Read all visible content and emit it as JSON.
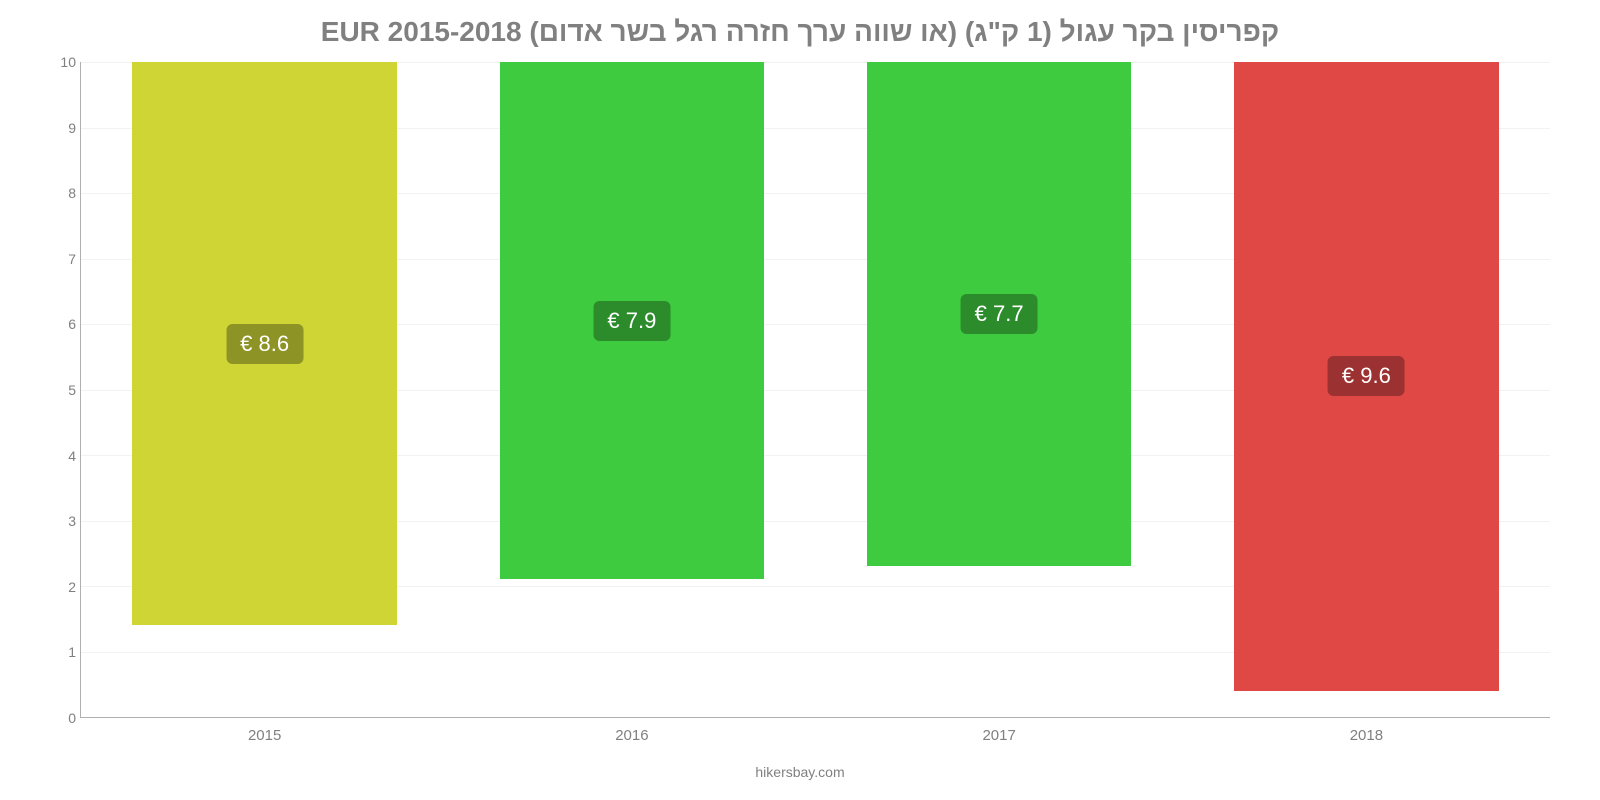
{
  "chart": {
    "type": "bar",
    "title": "קפריסין בקר עגול (1 ק\"ג) (או שווה ערך חזרה רגל בשר אדום) EUR 2015-2018",
    "title_color": "#808080",
    "title_fontsize": 28,
    "background_color": "#ffffff",
    "grid_color": "#f2f2f2",
    "axis_color": "#b0b0b0",
    "tick_color": "#808080",
    "tick_fontsize": 14,
    "ylim": [
      0,
      10
    ],
    "yticks": [
      0,
      1,
      2,
      3,
      4,
      5,
      6,
      7,
      8,
      9,
      10
    ],
    "categories": [
      "2015",
      "2016",
      "2017",
      "2018"
    ],
    "series": [
      {
        "value": 8.6,
        "label": "€ 8.6",
        "bar_color": "#ced535",
        "badge_bg": "#8e9325"
      },
      {
        "value": 7.9,
        "label": "€ 7.9",
        "bar_color": "#3fcb3f",
        "badge_bg": "#2c8c2c"
      },
      {
        "value": 7.7,
        "label": "€ 7.7",
        "bar_color": "#3fcb3f",
        "badge_bg": "#2c8c2c"
      },
      {
        "value": 9.6,
        "label": "€ 9.6",
        "bar_color": "#e04846",
        "badge_bg": "#9b3231"
      }
    ],
    "bar_width_pct": 72,
    "badge_fontsize": 22,
    "badge_text_color": "#ffffff",
    "footer": "hikersbay.com",
    "footer_color": "#808080",
    "footer_fontsize": 14
  }
}
